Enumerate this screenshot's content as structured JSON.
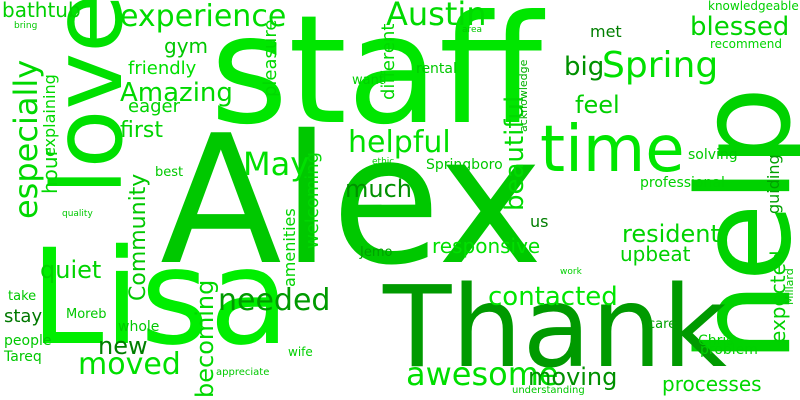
{
  "word_cloud": {
    "words": [
      {
        "text": "Alex",
        "color": "#00c800"
      },
      {
        "text": "staff",
        "color": "#00e600"
      },
      {
        "text": "help",
        "color": "#00d200"
      },
      {
        "text": "Lisa",
        "color": "#00ee00"
      },
      {
        "text": "Thank",
        "color": "#009a00"
      },
      {
        "text": "love",
        "color": "#00e000"
      },
      {
        "text": "time",
        "color": "#00e600"
      },
      {
        "text": "awesome",
        "color": "#00de00"
      },
      {
        "text": "especially",
        "color": "#00d800"
      },
      {
        "text": "experience",
        "color": "#00dc00"
      },
      {
        "text": "Austin",
        "color": "#00da00"
      },
      {
        "text": "Spring",
        "color": "#00e000"
      },
      {
        "text": "helpful",
        "color": "#00e000"
      },
      {
        "text": "May",
        "color": "#00e000"
      },
      {
        "text": "Amazing",
        "color": "#00d800"
      },
      {
        "text": "blessed",
        "color": "#00d400"
      },
      {
        "text": "needed",
        "color": "#009a00"
      },
      {
        "text": "contacted",
        "color": "#00e600"
      },
      {
        "text": "moved",
        "color": "#00e000"
      },
      {
        "text": "moving",
        "color": "#009000"
      },
      {
        "text": "beautiful",
        "color": "#00da00"
      },
      {
        "text": "resident",
        "color": "#00d400"
      },
      {
        "text": "Community",
        "color": "#00c800"
      },
      {
        "text": "expected",
        "color": "#00d000"
      },
      {
        "text": "feel",
        "color": "#00d000"
      },
      {
        "text": "big",
        "color": "#009000"
      },
      {
        "text": "quiet",
        "color": "#00d400"
      },
      {
        "text": "much",
        "color": "#009000"
      },
      {
        "text": "first",
        "color": "#00d400"
      },
      {
        "text": "new",
        "color": "#007e00"
      },
      {
        "text": "becoming",
        "color": "#00d800"
      },
      {
        "text": "bathtub",
        "color": "#00d000"
      },
      {
        "text": "gym",
        "color": "#00c800"
      },
      {
        "text": "responsive",
        "color": "#00e000"
      },
      {
        "text": "processes",
        "color": "#00d800"
      },
      {
        "text": "upbeat",
        "color": "#00d000"
      },
      {
        "text": "hour",
        "color": "#00d800"
      },
      {
        "text": "friendly",
        "color": "#00e000"
      },
      {
        "text": "welcoming",
        "color": "#00d800"
      },
      {
        "text": "stay",
        "color": "#007800"
      },
      {
        "text": "pleasure",
        "color": "#00d800"
      },
      {
        "text": "different",
        "color": "#00d800"
      },
      {
        "text": "guiding",
        "color": "#00a000"
      },
      {
        "text": "explaining",
        "color": "#00d800"
      },
      {
        "text": "eager",
        "color": "#00d400"
      },
      {
        "text": "met",
        "color": "#007e00"
      },
      {
        "text": "us",
        "color": "#007e00"
      },
      {
        "text": "amenities",
        "color": "#00d400"
      },
      {
        "text": "Springboro",
        "color": "#00c800"
      },
      {
        "text": "professional",
        "color": "#00d000"
      },
      {
        "text": "knowledgeable",
        "color": "#00d000"
      },
      {
        "text": "recommend",
        "color": "#00d400"
      },
      {
        "text": "rental",
        "color": "#00c800"
      },
      {
        "text": "acknowledge",
        "color": "#00b000"
      },
      {
        "text": "solving",
        "color": "#00c800"
      },
      {
        "text": "want",
        "color": "#00d000"
      },
      {
        "text": "best",
        "color": "#00c800"
      },
      {
        "text": "Jemo",
        "color": "#00a000"
      },
      {
        "text": "ethic",
        "color": "#00d000"
      },
      {
        "text": "Chris",
        "color": "#00d000"
      },
      {
        "text": "Millard",
        "color": "#00c800"
      },
      {
        "text": "whole",
        "color": "#00c800"
      },
      {
        "text": "wife",
        "color": "#00d000"
      },
      {
        "text": "problem",
        "color": "#00d000"
      },
      {
        "text": "care",
        "color": "#00a000"
      },
      {
        "text": "take",
        "color": "#00c800"
      },
      {
        "text": "Moreb",
        "color": "#00c800"
      },
      {
        "text": "people",
        "color": "#00c800"
      },
      {
        "text": "Tareq",
        "color": "#00c800"
      },
      {
        "text": "appreciate",
        "color": "#00c800"
      },
      {
        "text": "understanding",
        "color": "#00c800"
      },
      {
        "text": "work",
        "color": "#00d000"
      },
      {
        "text": "quality",
        "color": "#00c800"
      },
      {
        "text": "bring",
        "color": "#00c800"
      },
      {
        "text": "area",
        "color": "#00c800"
      }
    ]
  }
}
